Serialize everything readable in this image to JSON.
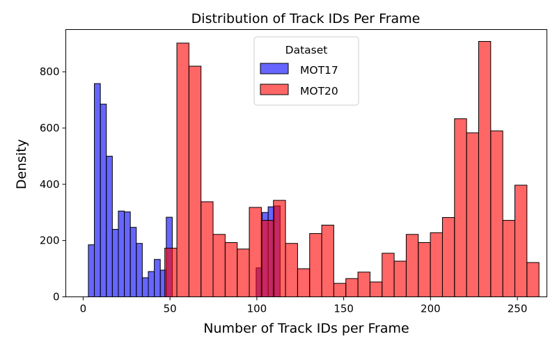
{
  "chart_data": {
    "type": "histogram",
    "title": "Distribution of Track IDs Per Frame",
    "xlabel": "Number of Track IDs per Frame",
    "ylabel": "Density",
    "xlim": [
      -10,
      267
    ],
    "ylim": [
      0,
      950
    ],
    "xticks": [
      0,
      50,
      100,
      150,
      200,
      250
    ],
    "yticks": [
      0,
      200,
      400,
      600,
      800
    ],
    "grid": false,
    "legend": {
      "title": "Dataset",
      "placement": "top-center"
    },
    "series": [
      {
        "name": "MOT17",
        "color": "#0000ff",
        "opacity": 0.6,
        "bin_start": 3,
        "bin_width": 3.45,
        "values": [
          185,
          758,
          685,
          500,
          240,
          305,
          302,
          247,
          190,
          68,
          90,
          133,
          95,
          283,
          0,
          0,
          0,
          0,
          0,
          0,
          0,
          0,
          0,
          0,
          0,
          0,
          0,
          0,
          103,
          300,
          320,
          323
        ]
      },
      {
        "name": "MOT20",
        "color": "#ff0000",
        "opacity": 0.6,
        "bin_start": 47,
        "bin_width": 6.95,
        "values": [
          173,
          902,
          820,
          338,
          222,
          193,
          170,
          318,
          272,
          343,
          190,
          100,
          225,
          255,
          48,
          65,
          88,
          53,
          155,
          127,
          222,
          193,
          228,
          282,
          633,
          583,
          908,
          590,
          272,
          397,
          122
        ]
      }
    ]
  }
}
